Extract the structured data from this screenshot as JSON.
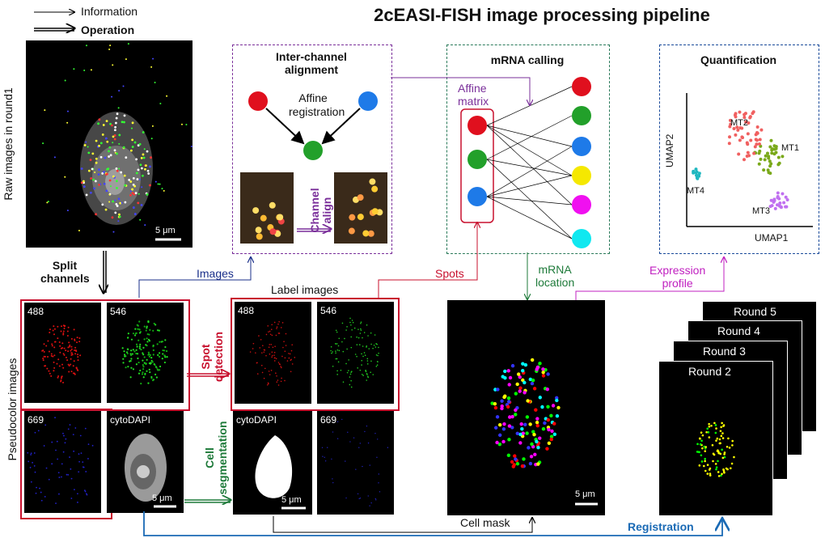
{
  "legend": {
    "information": "Information",
    "operation": "Operation"
  },
  "title": "2cEASI-FISH image processing pipeline",
  "raw_label": "Raw images in round1",
  "scale_5um": "5 μm",
  "split_channels": [
    "Split",
    "channels"
  ],
  "pseudocolor_label": "Pseudocolor images",
  "channels": {
    "c488": "488",
    "c546": "546",
    "c669": "669",
    "cytodapi": "cytoDAPI"
  },
  "inter_channel": {
    "title_line1": "Inter-channel",
    "title_line2": "alignment",
    "affine_line1": "Affine",
    "affine_line2": "registration",
    "channel_align_line1": "Channel",
    "channel_align_line2": "align"
  },
  "mrna_calling": {
    "title": "mRNA calling",
    "affine_line1": "Affine",
    "affine_line2": "matrix"
  },
  "quantification": {
    "title": "Quantification",
    "umap1": "UMAP1",
    "umap2": "UMAP2",
    "clusters": [
      "MT1",
      "MT2",
      "MT3",
      "MT4"
    ]
  },
  "flow": {
    "images": "Images",
    "spots": "Spots",
    "label_images": "Label images",
    "mrna_location_line1": "mRNA",
    "mrna_location_line2": "location",
    "expression_line1": "Expression",
    "expression_line2": "profile",
    "spot_detection_line1": "Spot",
    "spot_detection_line2": "detection",
    "cell_seg_line1": "Cell",
    "cell_seg_line2": "segmentation",
    "cell_mask": "Cell mask",
    "registration": "Registration"
  },
  "rounds": [
    "Round 5",
    "Round 4",
    "Round 3",
    "Round 2"
  ],
  "colors": {
    "red": "#c8102e",
    "blue": "#1a2f8a",
    "green": "#1e7a3a",
    "purple": "#7a2f9a",
    "magenta": "#c020c0",
    "regblue": "#1a6ab5",
    "teal": "#2a7a5a"
  }
}
